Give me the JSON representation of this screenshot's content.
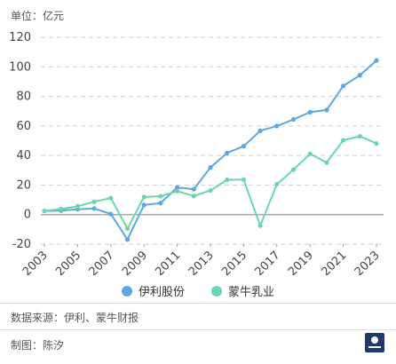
{
  "unit_label": "单位：亿元",
  "source_text": "数据来源：伊利、蒙牛财报",
  "maker_text": "制图：陈汐",
  "chart_data": {
    "type": "line",
    "title": "",
    "xlabel": "",
    "ylabel": "",
    "ylim": [
      -20,
      120
    ],
    "yticks": [
      -20,
      0,
      20,
      40,
      60,
      80,
      100,
      120
    ],
    "x": [
      2003,
      2004,
      2005,
      2006,
      2007,
      2008,
      2009,
      2010,
      2011,
      2012,
      2013,
      2014,
      2015,
      2016,
      2017,
      2018,
      2019,
      2020,
      2021,
      2022,
      2023
    ],
    "xtick_labels": [
      "2003",
      "2005",
      "2007",
      "2009",
      "2011",
      "2013",
      "2015",
      "2017",
      "2019",
      "2021",
      "2023"
    ],
    "legend_position": "bottom",
    "grid": "horizontal-dashed",
    "series": [
      {
        "name": "伊利股份",
        "color": "#5aa7e6",
        "values": [
          2.5,
          2.7,
          3.6,
          4.1,
          0.4,
          -16.9,
          6.5,
          7.8,
          18.4,
          17.2,
          31.9,
          41.7,
          46.3,
          56.7,
          60.0,
          64.4,
          69.3,
          70.8,
          87.1,
          94.3,
          104.3
        ]
      },
      {
        "name": "蒙牛乳业",
        "color": "#6ad6ae",
        "values": [
          2.5,
          3.8,
          5.6,
          8.7,
          11.2,
          -9.5,
          11.9,
          12.4,
          15.9,
          12.6,
          16.3,
          23.5,
          23.7,
          -7.5,
          20.5,
          30.4,
          41.1,
          35.2,
          50.3,
          53.0,
          48.1
        ]
      }
    ]
  }
}
